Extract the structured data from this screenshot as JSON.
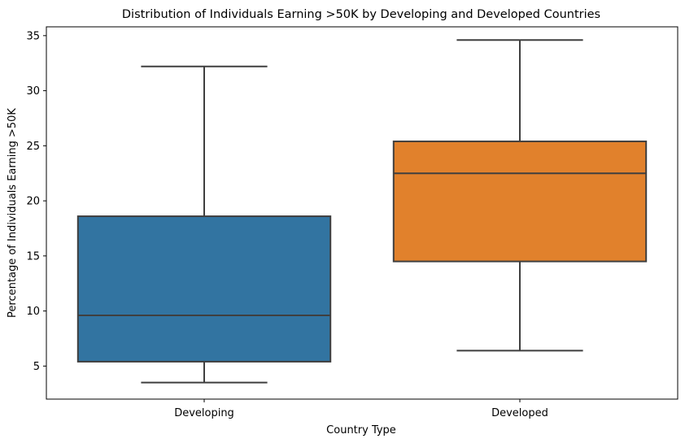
{
  "chart_data": {
    "type": "boxplot",
    "title": "Distribution of Individuals Earning >50K by Developing and Developed Countries",
    "xlabel": "Country Type",
    "ylabel": "Percentage of Individuals Earning >50K",
    "ylim": [
      2.0,
      35.8
    ],
    "yticks": [
      5,
      10,
      15,
      20,
      25,
      30,
      35
    ],
    "categories": [
      "Developing",
      "Developed"
    ],
    "boxes": [
      {
        "category": "Developing",
        "whisker_low": 3.5,
        "q1": 5.4,
        "median": 9.6,
        "q3": 18.6,
        "whisker_high": 32.2,
        "color": "#3274a1"
      },
      {
        "category": "Developed",
        "whisker_low": 6.4,
        "q1": 14.5,
        "median": 22.5,
        "q3": 25.4,
        "whisker_high": 34.6,
        "color": "#e1812c"
      }
    ],
    "grid": false,
    "legend": "none"
  }
}
